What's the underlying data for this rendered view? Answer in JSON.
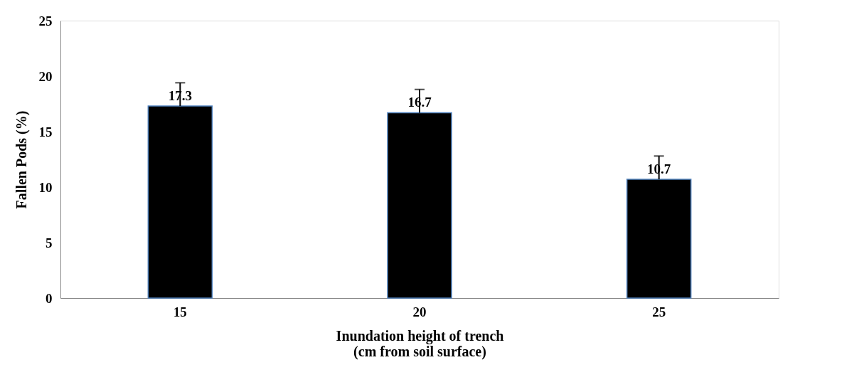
{
  "chart_data": {
    "type": "bar",
    "xlabel": "Inundation height of trench\n(cm from soil surface)",
    "ylabel": "Fallen Pods  (%)",
    "categories": [
      "15",
      "20",
      "25"
    ],
    "series": [
      {
        "color": "#000000",
        "values": [
          17.3,
          16.7,
          10.7
        ],
        "errors": [
          [
            17.3,
            19.4
          ],
          [
            16.7,
            18.8
          ],
          [
            10.7,
            12.8
          ]
        ]
      }
    ],
    "ylim": [
      0,
      25
    ],
    "yticks": [
      0,
      5,
      10,
      15,
      20,
      25
    ],
    "grid": false,
    "data_labels": true
  }
}
